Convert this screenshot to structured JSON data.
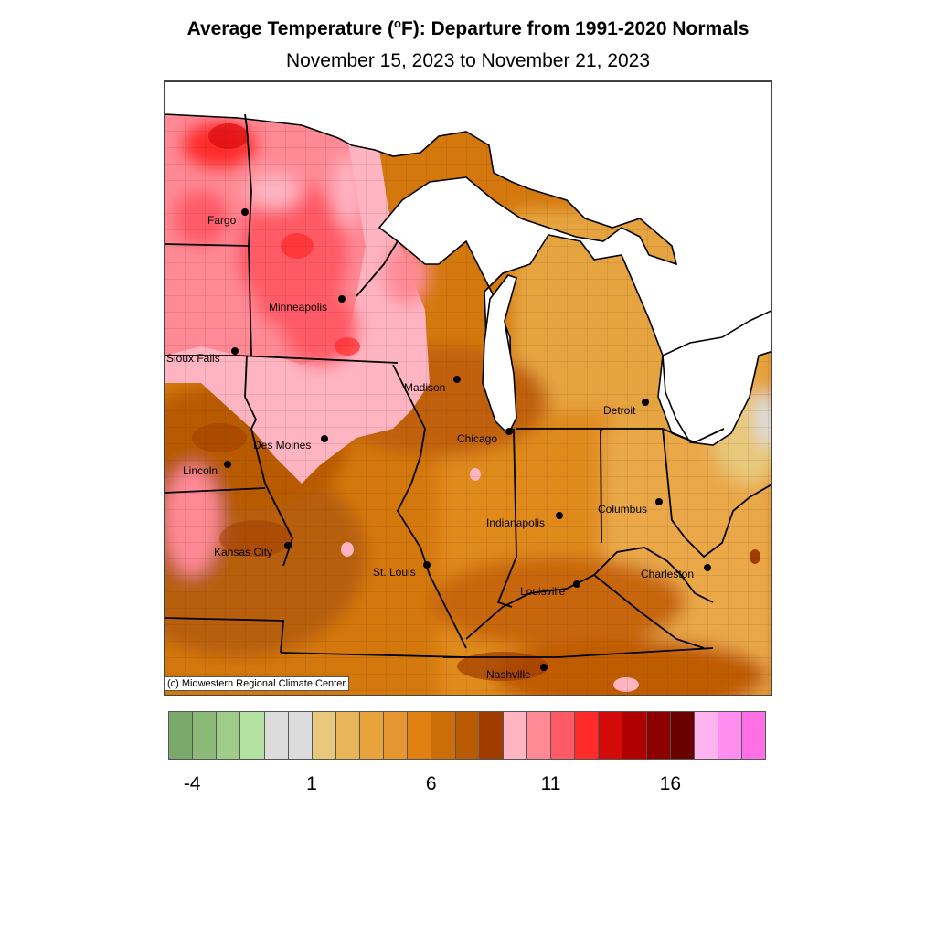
{
  "title_main": "Average Temperature (",
  "title_sup": "o",
  "title_rest": "F): Departure from 1991-2020 Normals",
  "subtitle": "November 15, 2023 to November 21, 2023",
  "credit": "(c) Midwestern Regional Climate Center",
  "cities": [
    {
      "name": "Fargo"
    },
    {
      "name": "Minneapolis"
    },
    {
      "name": "Sioux Falls"
    },
    {
      "name": "Madison"
    },
    {
      "name": "Detroit"
    },
    {
      "name": "Des Moines"
    },
    {
      "name": "Chicago"
    },
    {
      "name": "Lincoln"
    },
    {
      "name": "Columbus"
    },
    {
      "name": "Indianapolis"
    },
    {
      "name": "Kansas City"
    },
    {
      "name": "St. Louis"
    },
    {
      "name": "Charleston"
    },
    {
      "name": "Louisville"
    },
    {
      "name": "Nashville"
    }
  ],
  "legend": {
    "colors": [
      "#7aa86a",
      "#8bba78",
      "#a0cc8a",
      "#b3e2a0",
      "#dcdcdc",
      "#dcdcdc",
      "#e8c87a",
      "#e8b55a",
      "#e8a33c",
      "#e69630",
      "#e08010",
      "#cc6e08",
      "#b85a04",
      "#a03c00",
      "#ffb4c2",
      "#ff8a96",
      "#ff5a66",
      "#ff2a2a",
      "#d20a0a",
      "#b00000",
      "#8c0000",
      "#6a0000",
      "#ffb4f0",
      "#ff8ef0",
      "#ff70e6"
    ],
    "ticks": [
      {
        "label": "-4",
        "index": 1
      },
      {
        "label": "1",
        "index": 6
      },
      {
        "label": "6",
        "index": 11
      },
      {
        "label": "11",
        "index": 16
      },
      {
        "label": "16",
        "index": 21
      }
    ]
  }
}
